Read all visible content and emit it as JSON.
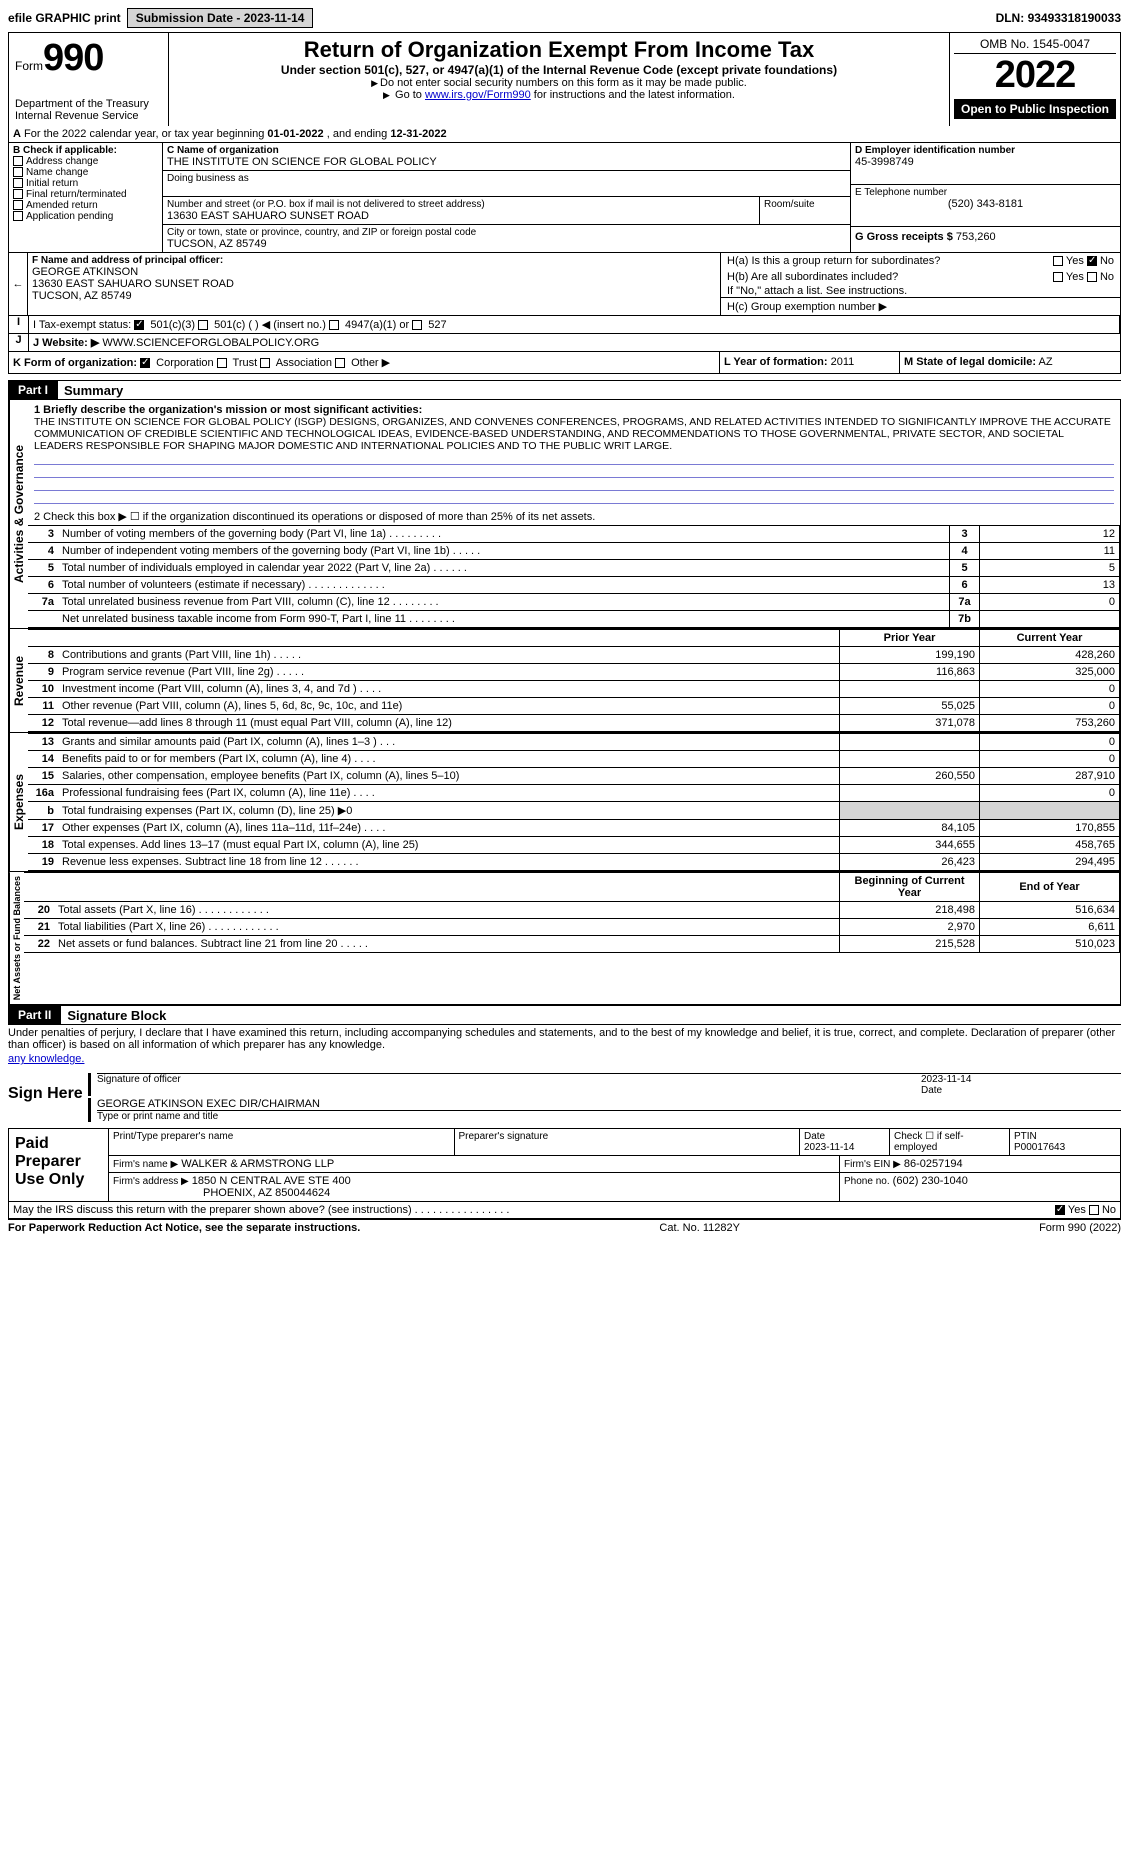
{
  "toolbar": {
    "efile": "efile GRAPHIC print",
    "submission_label": "Submission Date - ",
    "submission_date": "2023-11-14",
    "dln_label": "DLN: ",
    "dln": "93493318190033"
  },
  "header": {
    "form_label": "Form",
    "form_number": "990",
    "dept": "Department of the Treasury",
    "irs": "Internal Revenue Service",
    "title": "Return of Organization Exempt From Income Tax",
    "subtitle": "Under section 501(c), 527, or 4947(a)(1) of the Internal Revenue Code (except private foundations)",
    "note1": "Do not enter social security numbers on this form as it may be made public.",
    "note2_pre": "Go to ",
    "note2_link": "www.irs.gov/Form990",
    "note2_post": " for instructions and the latest information.",
    "omb": "OMB No. 1545-0047",
    "year": "2022",
    "inspection": "Open to Public Inspection"
  },
  "periodA": {
    "text_pre": "For the 2022 calendar year, or tax year beginning ",
    "begin": "01-01-2022",
    "mid": " , and ending ",
    "end": "12-31-2022"
  },
  "B": {
    "label": "B Check if applicable:",
    "items": [
      "Address change",
      "Name change",
      "Initial return",
      "Final return/terminated",
      "Amended return",
      "Application pending"
    ]
  },
  "C": {
    "name_label": "C Name of organization",
    "name": "THE INSTITUTE ON SCIENCE FOR GLOBAL POLICY",
    "dba_label": "Doing business as",
    "dba": "",
    "street_label": "Number and street (or P.O. box if mail is not delivered to street address)",
    "room_label": "Room/suite",
    "street": "13630 EAST SAHUARO SUNSET ROAD",
    "city_label": "City or town, state or province, country, and ZIP or foreign postal code",
    "city": "TUCSON, AZ  85749"
  },
  "D": {
    "label": "D Employer identification number",
    "value": "45-3998749"
  },
  "E": {
    "label": "E Telephone number",
    "value": "(520) 343-8181"
  },
  "G": {
    "label": "G Gross receipts $",
    "value": "753,260"
  },
  "F": {
    "label": "F  Name and address of principal officer:",
    "name": "GEORGE ATKINSON",
    "addr1": "13630 EAST SAHUARO SUNSET ROAD",
    "addr2": "TUCSON, AZ  85749"
  },
  "H": {
    "a": "H(a)  Is this a group return for subordinates?",
    "b": "H(b)  Are all subordinates included?",
    "b_note": "If \"No,\" attach a list. See instructions.",
    "c": "H(c)  Group exemption number ▶",
    "yes": "Yes",
    "no": "No"
  },
  "I": {
    "label": "I  Tax-exempt status:",
    "opts": [
      "501(c)(3)",
      "501(c) (  ) ◀ (insert no.)",
      "4947(a)(1) or",
      "527"
    ]
  },
  "J": {
    "label": "J  Website: ▶",
    "value": "WWW.SCIENCEFORGLOBALPOLICY.ORG"
  },
  "K": {
    "label": "K Form of organization:",
    "opts": [
      "Corporation",
      "Trust",
      "Association",
      "Other ▶"
    ]
  },
  "L": {
    "label": "L Year of formation:",
    "value": "2011"
  },
  "M": {
    "label": "M State of legal domicile:",
    "value": "AZ"
  },
  "partI": {
    "tag": "Part I",
    "title": "Summary",
    "q1_label": "1  Briefly describe the organization's mission or most significant activities:",
    "q1_text": "THE INSTITUTE ON SCIENCE FOR GLOBAL POLICY (ISGP) DESIGNS, ORGANIZES, AND CONVENES CONFERENCES, PROGRAMS, AND RELATED ACTIVITIES INTENDED TO SIGNIFICANTLY IMPROVE THE ACCURATE COMMUNICATION OF CREDIBLE SCIENTIFIC AND TECHNOLOGICAL IDEAS, EVIDENCE-BASED UNDERSTANDING, AND RECOMMENDATIONS TO THOSE GOVERNMENTAL, PRIVATE SECTOR, AND SOCIETAL LEADERS RESPONSIBLE FOR SHAPING MAJOR DOMESTIC AND INTERNATIONAL POLICIES AND TO THE PUBLIC WRIT LARGE.",
    "q2": "2   Check this box ▶ ☐  if the organization discontinued its operations or disposed of more than 25% of its net assets.",
    "rows_gov": [
      {
        "n": "3",
        "t": "Number of voting members of the governing body (Part VI, line 1a)  .    .    .    .    .    .    .    .    .",
        "b": "3",
        "v": "12"
      },
      {
        "n": "4",
        "t": "Number of independent voting members of the governing body (Part VI, line 1b)   .    .    .    .    .",
        "b": "4",
        "v": "11"
      },
      {
        "n": "5",
        "t": "Total number of individuals employed in calendar year 2022 (Part V, line 2a)   .    .    .    .    .    .",
        "b": "5",
        "v": "5"
      },
      {
        "n": "6",
        "t": "Total number of volunteers (estimate if necessary)   .    .    .    .    .    .    .    .    .    .    .    .    .",
        "b": "6",
        "v": "13"
      },
      {
        "n": "7a",
        "t": "Total unrelated business revenue from Part VIII, column (C), line 12   .    .    .    .    .    .    .    .",
        "b": "7a",
        "v": "0"
      },
      {
        "n": "",
        "t": "Net unrelated business taxable income from Form 990-T, Part I, line 11  .    .    .    .    .    .    .    .",
        "b": "7b",
        "v": ""
      }
    ],
    "hdr_prior": "Prior Year",
    "hdr_current": "Current Year",
    "rows_rev": [
      {
        "n": "8",
        "t": "Contributions and grants (Part VIII, line 1h)  .    .    .    .    .",
        "p": "199,190",
        "c": "428,260"
      },
      {
        "n": "9",
        "t": "Program service revenue (Part VIII, line 2g)  .    .    .    .    .",
        "p": "116,863",
        "c": "325,000"
      },
      {
        "n": "10",
        "t": "Investment income (Part VIII, column (A), lines 3, 4, and 7d )  .    .    .    .",
        "p": "",
        "c": "0"
      },
      {
        "n": "11",
        "t": "Other revenue (Part VIII, column (A), lines 5, 6d, 8c, 9c, 10c, and 11e)",
        "p": "55,025",
        "c": "0"
      },
      {
        "n": "12",
        "t": "Total revenue—add lines 8 through 11 (must equal Part VIII, column (A), line 12)",
        "p": "371,078",
        "c": "753,260"
      }
    ],
    "rows_exp": [
      {
        "n": "13",
        "t": "Grants and similar amounts paid (Part IX, column (A), lines 1–3 )  .    .    .",
        "p": "",
        "c": "0"
      },
      {
        "n": "14",
        "t": "Benefits paid to or for members (Part IX, column (A), line 4)  .    .    .    .",
        "p": "",
        "c": "0"
      },
      {
        "n": "15",
        "t": "Salaries, other compensation, employee benefits (Part IX, column (A), lines 5–10)",
        "p": "260,550",
        "c": "287,910"
      },
      {
        "n": "16a",
        "t": "Professional fundraising fees (Part IX, column (A), line 11e)  .    .    .    .",
        "p": "",
        "c": "0"
      },
      {
        "n": "b",
        "t": "Total fundraising expenses (Part IX, column (D), line 25) ▶0",
        "p": "__shade__",
        "c": "__shade__"
      },
      {
        "n": "17",
        "t": "Other expenses (Part IX, column (A), lines 11a–11d, 11f–24e)  .    .    .    .",
        "p": "84,105",
        "c": "170,855"
      },
      {
        "n": "18",
        "t": "Total expenses. Add lines 13–17 (must equal Part IX, column (A), line 25)",
        "p": "344,655",
        "c": "458,765"
      },
      {
        "n": "19",
        "t": "Revenue less expenses. Subtract line 18 from line 12  .    .    .    .    .    .",
        "p": "26,423",
        "c": "294,495"
      }
    ],
    "hdr_begin": "Beginning of Current Year",
    "hdr_end": "End of Year",
    "rows_net": [
      {
        "n": "20",
        "t": "Total assets (Part X, line 16)  .    .    .    .    .    .    .    .    .    .    .    .",
        "p": "218,498",
        "c": "516,634"
      },
      {
        "n": "21",
        "t": "Total liabilities (Part X, line 26)  .    .    .    .    .    .    .    .    .    .    .    .",
        "p": "2,970",
        "c": "6,611"
      },
      {
        "n": "22",
        "t": "Net assets or fund balances. Subtract line 21 from line 20  .    .    .    .    .",
        "p": "215,528",
        "c": "510,023"
      }
    ],
    "vtabs": {
      "gov": "Activities & Governance",
      "rev": "Revenue",
      "exp": "Expenses",
      "net": "Net Assets or Fund Balances"
    }
  },
  "partII": {
    "tag": "Part II",
    "title": "Signature Block",
    "perjury": "Under penalties of perjury, I declare that I have examined this return, including accompanying schedules and statements, and to the best of my knowledge and belief, it is true, correct, and complete. Declaration of preparer (other than officer) is based on all information of which preparer has any knowledge.",
    "sign_here": "Sign Here",
    "sig_officer": "Signature of officer",
    "sig_date": "2023-11-14",
    "date_label": "Date",
    "officer_name": "GEORGE ATKINSON  EXEC DIR/CHAIRMAN",
    "type_name": "Type or print name and title",
    "paid": "Paid Preparer Use Only",
    "prep_name_label": "Print/Type preparer's name",
    "prep_sig_label": "Preparer's signature",
    "prep_date_label": "Date",
    "prep_date": "2023-11-14",
    "check_if": "Check ☐ if self-employed",
    "ptin_label": "PTIN",
    "ptin": "P00017643",
    "firm_name_label": "Firm's name    ▶",
    "firm_name": "WALKER & ARMSTRONG LLP",
    "firm_ein_label": "Firm's EIN ▶",
    "firm_ein": "86-0257194",
    "firm_addr_label": "Firm's address ▶",
    "firm_addr1": "1850 N CENTRAL AVE STE 400",
    "firm_addr2": "PHOENIX, AZ  850044624",
    "phone_label": "Phone no.",
    "phone": "(602) 230-1040",
    "discuss": "May the IRS discuss this return with the preparer shown above? (see instructions)  .    .    .    .    .    .    .    .    .    .    .    .    .    .    .    .",
    "yes": "Yes",
    "no": "No"
  },
  "footer": {
    "left": "For Paperwork Reduction Act Notice, see the separate instructions.",
    "mid": "Cat. No. 11282Y",
    "right": "Form 990 (2022)"
  }
}
